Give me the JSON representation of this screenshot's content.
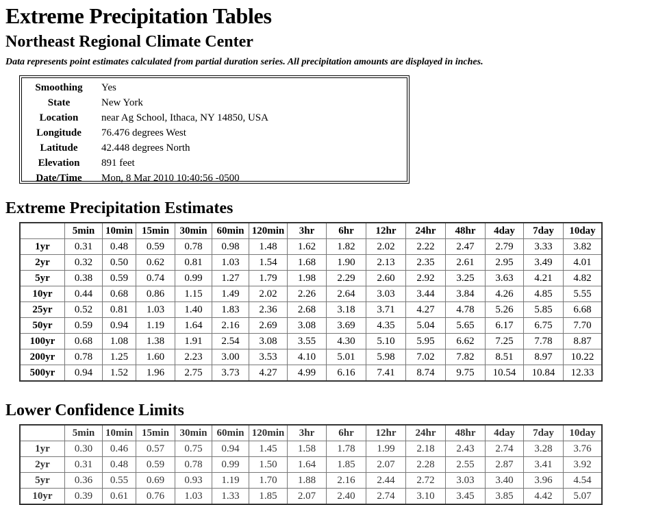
{
  "page": {
    "title": "Extreme Precipitation Tables",
    "subtitle": "Northeast Regional Climate Center",
    "note": "Data represents point estimates calculated from partial duration series. All precipitation amounts are displayed in inches."
  },
  "meta": [
    {
      "key": "Smoothing",
      "value": "Yes"
    },
    {
      "key": "State",
      "value": "New York"
    },
    {
      "key": "Location",
      "value": "near Ag School, Ithaca, NY 14850, USA"
    },
    {
      "key": "Longitude",
      "value": "76.476 degrees West"
    },
    {
      "key": "Latitude",
      "value": "42.448 degrees North"
    },
    {
      "key": "Elevation",
      "value": "891 feet"
    },
    {
      "key": "Date/Time",
      "value": "Mon, 8 Mar 2010 10:40:56 -0500"
    }
  ],
  "columns": [
    "5min",
    "10min",
    "15min",
    "30min",
    "60min",
    "120min",
    "3hr",
    "6hr",
    "12hr",
    "24hr",
    "48hr",
    "4day",
    "7day",
    "10day"
  ],
  "estimates": {
    "title": "Extreme Precipitation Estimates",
    "rows": [
      {
        "label": "1yr",
        "values": [
          "0.31",
          "0.48",
          "0.59",
          "0.78",
          "0.98",
          "1.48",
          "1.62",
          "1.82",
          "2.02",
          "2.22",
          "2.47",
          "2.79",
          "3.33",
          "3.82"
        ]
      },
      {
        "label": "2yr",
        "values": [
          "0.32",
          "0.50",
          "0.62",
          "0.81",
          "1.03",
          "1.54",
          "1.68",
          "1.90",
          "2.13",
          "2.35",
          "2.61",
          "2.95",
          "3.49",
          "4.01"
        ]
      },
      {
        "label": "5yr",
        "values": [
          "0.38",
          "0.59",
          "0.74",
          "0.99",
          "1.27",
          "1.79",
          "1.98",
          "2.29",
          "2.60",
          "2.92",
          "3.25",
          "3.63",
          "4.21",
          "4.82"
        ]
      },
      {
        "label": "10yr",
        "values": [
          "0.44",
          "0.68",
          "0.86",
          "1.15",
          "1.49",
          "2.02",
          "2.26",
          "2.64",
          "3.03",
          "3.44",
          "3.84",
          "4.26",
          "4.85",
          "5.55"
        ]
      },
      {
        "label": "25yr",
        "values": [
          "0.52",
          "0.81",
          "1.03",
          "1.40",
          "1.83",
          "2.36",
          "2.68",
          "3.18",
          "3.71",
          "4.27",
          "4.78",
          "5.26",
          "5.85",
          "6.68"
        ]
      },
      {
        "label": "50yr",
        "values": [
          "0.59",
          "0.94",
          "1.19",
          "1.64",
          "2.16",
          "2.69",
          "3.08",
          "3.69",
          "4.35",
          "5.04",
          "5.65",
          "6.17",
          "6.75",
          "7.70"
        ]
      },
      {
        "label": "100yr",
        "values": [
          "0.68",
          "1.08",
          "1.38",
          "1.91",
          "2.54",
          "3.08",
          "3.55",
          "4.30",
          "5.10",
          "5.95",
          "6.62",
          "7.25",
          "7.78",
          "8.87"
        ]
      },
      {
        "label": "200yr",
        "values": [
          "0.78",
          "1.25",
          "1.60",
          "2.23",
          "3.00",
          "3.53",
          "4.10",
          "5.01",
          "5.98",
          "7.02",
          "7.82",
          "8.51",
          "8.97",
          "10.22"
        ]
      },
      {
        "label": "500yr",
        "values": [
          "0.94",
          "1.52",
          "1.96",
          "2.75",
          "3.73",
          "4.27",
          "4.99",
          "6.16",
          "7.41",
          "8.74",
          "9.75",
          "10.54",
          "10.84",
          "12.33"
        ]
      }
    ]
  },
  "lower_confidence": {
    "title": "Lower Confidence Limits",
    "rows": [
      {
        "label": "1yr",
        "values": [
          "0.30",
          "0.46",
          "0.57",
          "0.75",
          "0.94",
          "1.45",
          "1.58",
          "1.78",
          "1.99",
          "2.18",
          "2.43",
          "2.74",
          "3.28",
          "3.76"
        ]
      },
      {
        "label": "2yr",
        "values": [
          "0.31",
          "0.48",
          "0.59",
          "0.78",
          "0.99",
          "1.50",
          "1.64",
          "1.85",
          "2.07",
          "2.28",
          "2.55",
          "2.87",
          "3.41",
          "3.92"
        ]
      },
      {
        "label": "5yr",
        "values": [
          "0.36",
          "0.55",
          "0.69",
          "0.93",
          "1.19",
          "1.70",
          "1.88",
          "2.16",
          "2.44",
          "2.72",
          "3.03",
          "3.40",
          "3.96",
          "4.54"
        ]
      },
      {
        "label": "10yr",
        "values": [
          "0.39",
          "0.61",
          "0.76",
          "1.03",
          "1.33",
          "1.85",
          "2.07",
          "2.40",
          "2.74",
          "3.10",
          "3.45",
          "3.85",
          "4.42",
          "5.07"
        ]
      }
    ]
  }
}
